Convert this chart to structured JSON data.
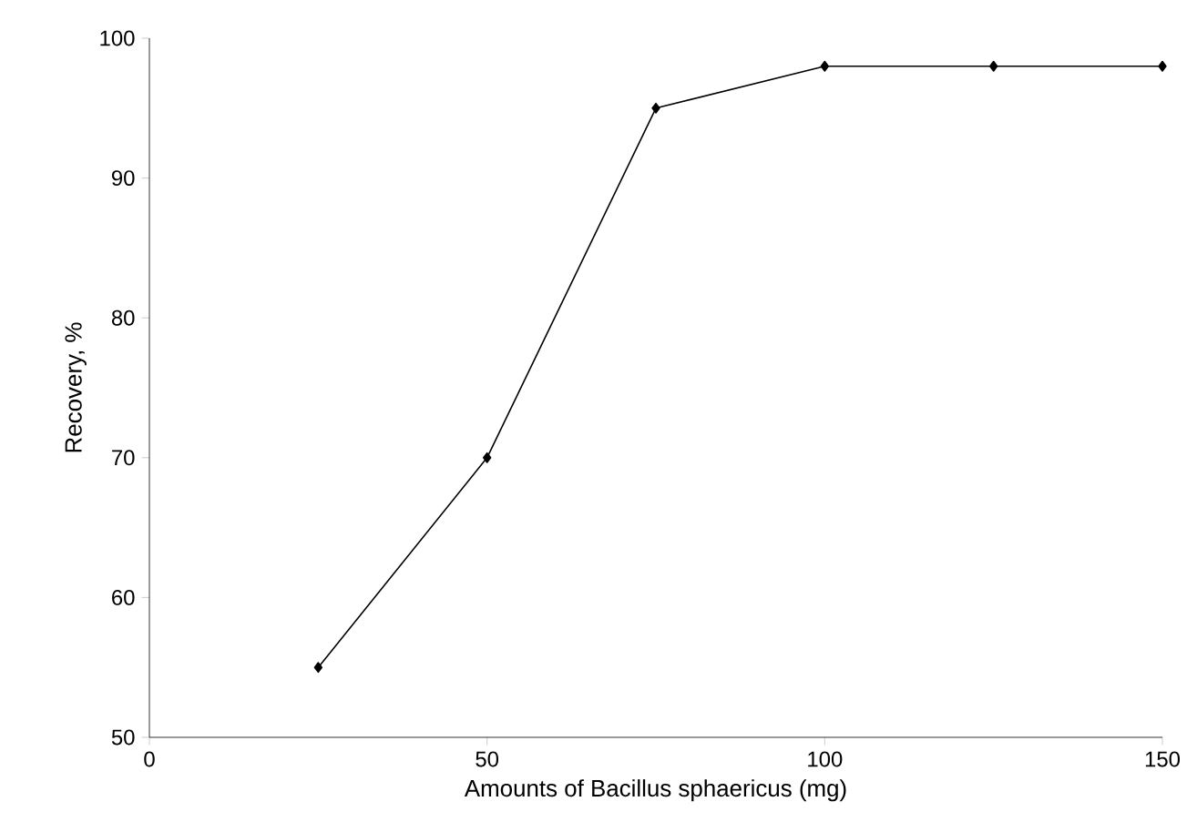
{
  "chart_data": {
    "type": "line",
    "xlabel": "Amounts of Bacillus sphaericus  (mg)",
    "ylabel": "Recovery, %",
    "x": [
      25,
      50,
      75,
      100,
      125,
      150
    ],
    "series": [
      {
        "color": "#000000",
        "values": [
          55,
          70,
          95,
          98,
          98,
          98
        ]
      }
    ],
    "xlim": [
      0,
      150
    ],
    "xticks": [
      0,
      50,
      100,
      150
    ],
    "ylim": [
      50,
      100
    ],
    "yticks": [
      50,
      60,
      70,
      80,
      90,
      100
    ],
    "marker": "diamond",
    "line_style": "solid"
  }
}
